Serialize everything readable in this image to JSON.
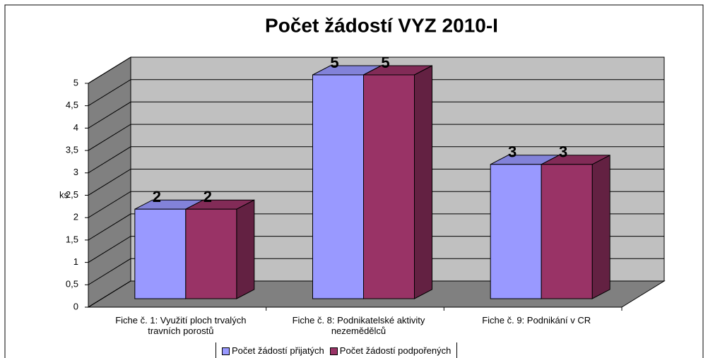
{
  "chart_data": {
    "type": "bar3d",
    "title": "Počet žádostí VYZ 2010-I",
    "y_label": "ks",
    "categories": [
      "Fiche č. 1: Využití ploch trvalých travních porostů",
      "Fiche č. 8: Podnikatelské aktivity nezemědělců",
      "Fiche č. 9: Podnikání v CR"
    ],
    "series": [
      {
        "name": "Počet žádostí přijatých",
        "color": "#9999ff",
        "values": [
          2,
          5,
          3
        ]
      },
      {
        "name": "Počet žádostí podpořených",
        "color": "#993366",
        "values": [
          2,
          5,
          3
        ]
      }
    ],
    "ylim": [
      0,
      5
    ],
    "yticks": [
      0,
      {
        "value": 0.5,
        "label": "0,5"
      },
      1,
      {
        "value": 1.5,
        "label": "1,5"
      },
      2,
      {
        "value": 2.5,
        "label": "2,5"
      },
      3,
      {
        "value": 3.5,
        "label": "3,5"
      },
      4,
      {
        "value": 4.5,
        "label": "4,5"
      },
      5
    ],
    "grid": true,
    "legend": "bottom"
  }
}
